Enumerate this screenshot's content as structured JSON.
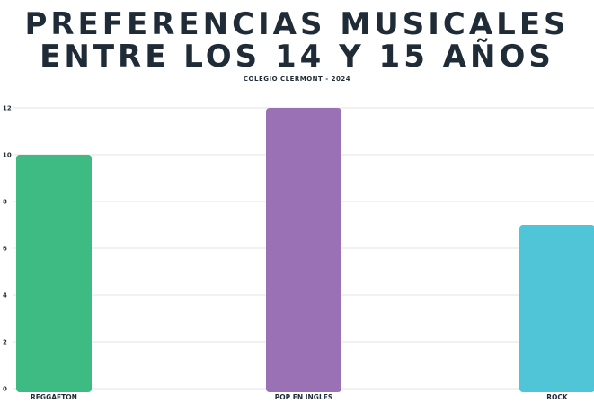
{
  "chart_data": {
    "type": "bar",
    "title_lines": [
      "PREFERENCIAS MUSICALES",
      "ENTRE LOS 14 Y 15 AÑOS"
    ],
    "subtitle": "COLEGIO CLERMONT - 2024",
    "xlabel": "",
    "ylabel": "",
    "categories": [
      "REGGAETON",
      "POP EN INGLES",
      "ROCK"
    ],
    "values": [
      10,
      12,
      7
    ],
    "colors": [
      "#3dbb83",
      "#9b71b5",
      "#4fc5d7"
    ],
    "ylim": [
      0,
      12
    ],
    "yticks": [
      0,
      2,
      4,
      6,
      8,
      10,
      12
    ],
    "grid": true,
    "legend": "none"
  }
}
